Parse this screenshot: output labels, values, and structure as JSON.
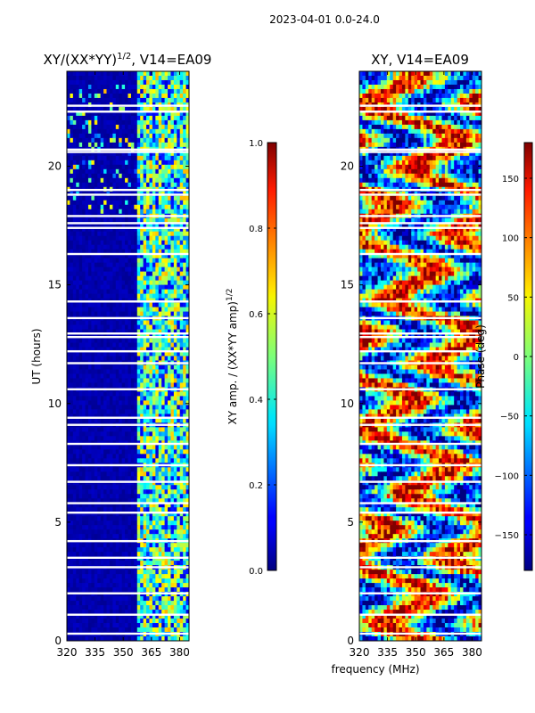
{
  "figure": {
    "suptitle": "2023-04-01 0.0-24.0",
    "xlabel": "frequency (MHz)"
  },
  "chart_data": [
    {
      "type": "heatmap",
      "title_main": "XY/(XX*YY)",
      "title_sup": "1/2",
      "title_tail": ", V14=EA09",
      "xlabel": "",
      "ylabel": "UT (hours)",
      "xlim": [
        320,
        385
      ],
      "ylim": [
        0,
        24
      ],
      "xticks": [
        "320",
        "335",
        "350",
        "365",
        "380"
      ],
      "xtick_values": [
        320,
        335,
        350,
        365,
        380
      ],
      "yticks": [
        "0",
        "5",
        "10",
        "15",
        "20"
      ],
      "ytick_values": [
        0,
        5,
        10,
        15,
        20
      ],
      "colormap": "jet",
      "note": "normalized XY amplitude; mostly near 0 below 358 MHz, elevated (0.3-0.7) in 358-385 MHz channels"
    },
    {
      "type": "heatmap",
      "title": "XY, V14=EA09",
      "xlabel": "",
      "ylabel": "",
      "xlim": [
        320,
        385
      ],
      "ylim": [
        0,
        24
      ],
      "xticks": [
        "320",
        "335",
        "350",
        "365",
        "380"
      ],
      "xtick_values": [
        320,
        335,
        350,
        365,
        380
      ],
      "yticks": [
        "0",
        "5",
        "10",
        "15",
        "20"
      ],
      "ytick_values": [
        0,
        5,
        10,
        15,
        20
      ],
      "colormap": "jet",
      "note": "XY phase in degrees, spanning -180 to 180, noisy structure across all channels"
    }
  ],
  "colorbars": [
    {
      "label_main": "XY amp. / (XX*YY amp)",
      "label_sup": "1/2",
      "range": [
        0,
        1
      ],
      "ticks": [
        "0.0",
        "0.2",
        "0.4",
        "0.6",
        "0.8",
        "1.0"
      ],
      "tick_values": [
        0,
        0.2,
        0.4,
        0.6,
        0.8,
        1.0
      ]
    },
    {
      "label": "Phase (deg)",
      "range": [
        -180,
        180
      ],
      "ticks": [
        "−150",
        "−100",
        "−50",
        "0",
        "50",
        "100",
        "150"
      ],
      "tick_values": [
        -150,
        -100,
        -50,
        0,
        50,
        100,
        150
      ]
    }
  ],
  "gaps_hours": [
    0.3,
    1.1,
    2.0,
    3.1,
    3.5,
    4.2,
    5.4,
    5.8,
    6.7,
    7.4,
    8.3,
    9.1,
    9.4,
    10.6,
    11.7,
    12.2,
    12.8,
    12.95,
    13.6,
    14.3,
    16.3,
    17.4,
    17.6,
    17.9,
    18.8,
    19.0,
    20.6,
    20.7,
    22.3,
    22.55
  ]
}
